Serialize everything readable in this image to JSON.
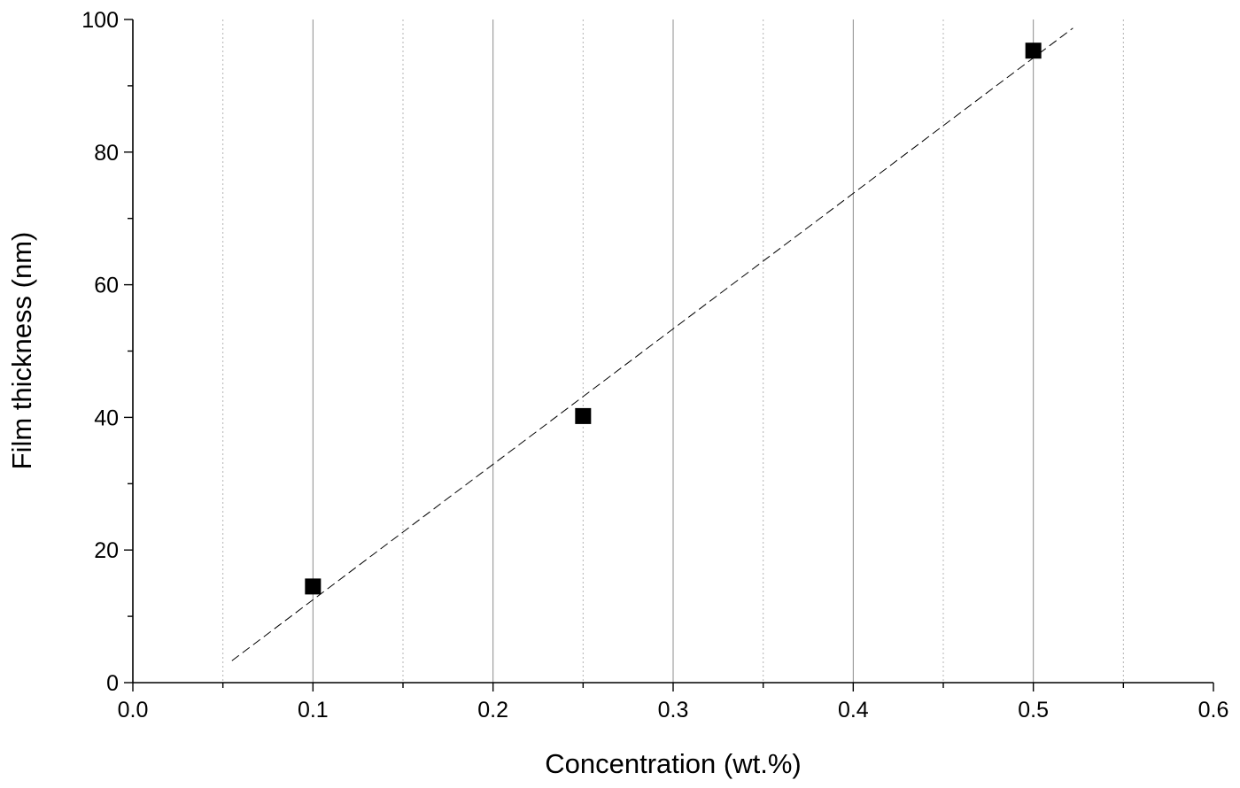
{
  "chart_data": {
    "type": "scatter",
    "title": "",
    "xlabel": "Concentration (wt.%)",
    "ylabel": "Film thickness (nm)",
    "xlim": [
      0.0,
      0.6
    ],
    "ylim": [
      0,
      100
    ],
    "x_major_ticks": [
      "0.0",
      "0.1",
      "0.2",
      "0.3",
      "0.4",
      "0.5",
      "0.6"
    ],
    "x_minor_step": 0.05,
    "y_major_ticks": [
      "0",
      "20",
      "40",
      "60",
      "80",
      "100"
    ],
    "y_minor_step": 10,
    "grid": {
      "x_major": true,
      "x_minor": true,
      "y": false
    },
    "series": [
      {
        "marker": "square",
        "color": "#000000",
        "x": [
          0.1,
          0.25,
          0.5
        ],
        "y": [
          14.5,
          40.2,
          95.3
        ]
      }
    ],
    "fit_line": {
      "style": "dashed",
      "color": "#000000",
      "x": [
        0.055,
        0.522
      ],
      "y": [
        3.3,
        98.7
      ]
    }
  }
}
